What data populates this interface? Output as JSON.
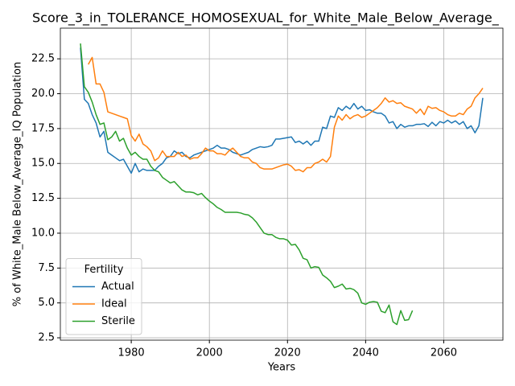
{
  "chart_data": {
    "type": "line",
    "title": "Score_3_in_TOLERANCE_HOMOSEXUAL_for_White_Male_Below_Average_",
    "xlabel": "Years",
    "ylabel": "% of White_Male Below_Average_IQ Population",
    "legend_title": "Fertility",
    "legend_loc": "lower left",
    "grid": true,
    "x": [
      1967,
      1968,
      1969,
      1970,
      1971,
      1972,
      1973,
      1974,
      1975,
      1976,
      1977,
      1978,
      1979,
      1980,
      1981,
      1982,
      1983,
      1984,
      1985,
      1986,
      1987,
      1988,
      1989,
      1990,
      1991,
      1992,
      1993,
      1994,
      1995,
      1996,
      1997,
      1998,
      1999,
      2000,
      2001,
      2002,
      2003,
      2004,
      2005,
      2006,
      2007,
      2008,
      2009,
      2010,
      2011,
      2012,
      2013,
      2014,
      2015,
      2016,
      2017,
      2018,
      2019,
      2020,
      2021,
      2022,
      2023,
      2024,
      2025,
      2026,
      2027,
      2028,
      2029,
      2030,
      2031,
      2032,
      2033,
      2034,
      2035,
      2036,
      2037,
      2038,
      2039,
      2040,
      2041,
      2042,
      2043,
      2044,
      2045,
      2046,
      2047,
      2048,
      2049,
      2050,
      2051,
      2052,
      2053,
      2054,
      2055,
      2056,
      2057,
      2058,
      2059,
      2060,
      2061,
      2062,
      2063,
      2064,
      2065,
      2066,
      2067,
      2068,
      2069,
      2070
    ],
    "series": [
      {
        "name": "Actual",
        "color": "#1f77b4",
        "values": [
          23.3,
          19.6,
          19.3,
          18.5,
          17.9,
          16.9,
          17.3,
          15.8,
          15.6,
          15.4,
          15.2,
          15.3,
          14.8,
          14.3,
          15.0,
          14.4,
          14.6,
          14.5,
          14.5,
          14.5,
          14.8,
          15.0,
          15.4,
          15.5,
          15.9,
          15.7,
          15.8,
          15.5,
          15.4,
          15.6,
          15.7,
          15.8,
          15.9,
          16.0,
          16.1,
          16.3,
          16.1,
          16.1,
          16.0,
          15.8,
          15.7,
          15.6,
          15.7,
          15.8,
          16.0,
          16.1,
          16.2,
          16.15,
          16.2,
          16.3,
          16.75,
          16.75,
          16.8,
          16.85,
          16.9,
          16.5,
          16.6,
          16.4,
          16.6,
          16.3,
          16.6,
          16.6,
          17.6,
          17.5,
          18.4,
          18.3,
          19.0,
          18.8,
          19.1,
          18.9,
          19.3,
          18.9,
          19.1,
          18.8,
          18.85,
          18.7,
          18.6,
          18.6,
          18.4,
          17.9,
          18.0,
          17.5,
          17.8,
          17.6,
          17.7,
          17.7,
          17.8,
          17.8,
          17.85,
          17.65,
          17.95,
          17.7,
          18.0,
          17.9,
          18.1,
          17.9,
          18.05,
          17.8,
          18.0,
          17.5,
          17.7,
          17.2,
          17.7,
          19.7
        ]
      },
      {
        "name": "Ideal",
        "color": "#ff7f0e",
        "values": [
          null,
          null,
          22.1,
          22.6,
          20.7,
          20.7,
          20.1,
          18.7,
          18.6,
          18.5,
          18.4,
          18.3,
          18.2,
          17.0,
          16.6,
          17.1,
          16.4,
          16.2,
          15.9,
          15.2,
          15.4,
          15.9,
          15.5,
          15.5,
          15.5,
          15.8,
          15.5,
          15.6,
          15.3,
          15.4,
          15.4,
          15.7,
          16.1,
          15.9,
          15.9,
          15.7,
          15.7,
          15.6,
          15.9,
          16.1,
          15.8,
          15.5,
          15.4,
          15.4,
          15.1,
          15.0,
          14.7,
          14.6,
          14.6,
          14.6,
          14.7,
          14.8,
          14.9,
          14.95,
          14.8,
          14.5,
          14.55,
          14.4,
          14.7,
          14.7,
          15.0,
          15.1,
          15.3,
          15.1,
          15.5,
          17.6,
          18.4,
          18.1,
          18.5,
          18.2,
          18.4,
          18.5,
          18.3,
          18.4,
          18.6,
          18.8,
          19.0,
          19.3,
          19.7,
          19.4,
          19.5,
          19.3,
          19.35,
          19.1,
          19.0,
          18.9,
          18.6,
          18.9,
          18.5,
          19.1,
          18.95,
          19.0,
          18.8,
          18.7,
          18.5,
          18.4,
          18.4,
          18.6,
          18.5,
          18.9,
          19.1,
          19.7,
          20.0,
          20.4
        ]
      },
      {
        "name": "Sterile",
        "color": "#2ca02c",
        "values": [
          23.6,
          20.5,
          20.1,
          19.4,
          18.5,
          17.8,
          17.9,
          16.7,
          16.9,
          17.3,
          16.6,
          16.8,
          16.1,
          15.6,
          15.8,
          15.5,
          15.3,
          15.3,
          14.8,
          14.5,
          14.4,
          14.0,
          13.8,
          13.6,
          13.7,
          13.4,
          13.1,
          12.95,
          12.95,
          12.9,
          12.75,
          12.85,
          12.55,
          12.3,
          12.1,
          11.85,
          11.7,
          11.5,
          11.5,
          11.5,
          11.5,
          11.45,
          11.35,
          11.3,
          11.1,
          10.8,
          10.4,
          10.0,
          9.9,
          9.9,
          9.7,
          9.6,
          9.6,
          9.5,
          9.15,
          9.2,
          8.8,
          8.2,
          8.1,
          7.5,
          7.6,
          7.55,
          7.0,
          6.8,
          6.55,
          6.1,
          6.2,
          6.35,
          6.0,
          6.05,
          5.95,
          5.7,
          5.0,
          4.9,
          5.05,
          5.1,
          5.05,
          4.4,
          4.3,
          4.85,
          3.65,
          3.45,
          4.45,
          3.75,
          3.8,
          4.45,
          null,
          null,
          null,
          null,
          null,
          null,
          null,
          null,
          null,
          null,
          null,
          null,
          null,
          null,
          null,
          null,
          null,
          null
        ]
      }
    ],
    "xlim": [
      1961.85,
      2075.15
    ],
    "ylim": [
      2.33,
      24.7
    ],
    "xticks": [
      1980,
      2000,
      2020,
      2040,
      2060
    ],
    "yticks": [
      2.5,
      {
        "value": 5,
        "label": "5.0"
      },
      7.5,
      {
        "value": 10,
        "label": "10.0"
      },
      12.5,
      {
        "value": 15,
        "label": "15.0"
      },
      17.5,
      {
        "value": 20,
        "label": "20.0"
      },
      22.5
    ]
  }
}
